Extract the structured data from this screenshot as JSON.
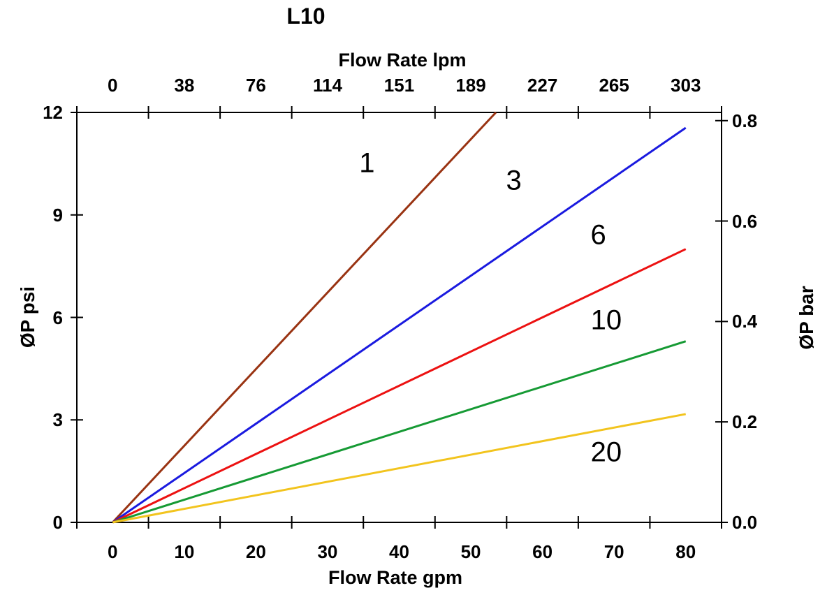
{
  "chart_data": {
    "type": "line",
    "title": "L10",
    "top_axis": {
      "label": "Flow Rate lpm",
      "tick_labels": [
        "0",
        "38",
        "76",
        "114",
        "151",
        "189",
        "227",
        "265",
        "303"
      ]
    },
    "bottom_axis": {
      "label": "Flow Rate gpm",
      "tick_labels": [
        "0",
        "10",
        "20",
        "30",
        "40",
        "50",
        "60",
        "70",
        "80"
      ],
      "range_gpm": [
        0,
        80
      ]
    },
    "left_axis": {
      "label": "ØP psi",
      "tick_labels": [
        "0",
        "3",
        "6",
        "9",
        "12"
      ],
      "tick_values": [
        0,
        3,
        6,
        9,
        12
      ],
      "range_psi": [
        0,
        12
      ]
    },
    "right_axis": {
      "label": "ØP bar",
      "tick_labels": [
        "0.0",
        "0.2",
        "0.4",
        "0.6",
        "0.8"
      ],
      "tick_values": [
        0,
        0.2,
        0.4,
        0.6,
        0.8
      ],
      "psi_per_bar": 14.7
    },
    "grid": "off",
    "legend": "none",
    "series": [
      {
        "name": "1",
        "color": "#993312",
        "points_gpm_psi": [
          [
            0,
            0
          ],
          [
            53.5,
            12.0
          ]
        ]
      },
      {
        "name": "3",
        "color": "#1A1ADF",
        "points_gpm_psi": [
          [
            0,
            0
          ],
          [
            80,
            11.55
          ]
        ]
      },
      {
        "name": "6",
        "color": "#EC1111",
        "points_gpm_psi": [
          [
            0,
            0
          ],
          [
            80,
            8.0
          ]
        ]
      },
      {
        "name": "10",
        "color": "#169A34",
        "points_gpm_psi": [
          [
            0,
            0
          ],
          [
            80,
            5.3
          ]
        ]
      },
      {
        "name": "20",
        "color": "#F2C41E",
        "points_gpm_psi": [
          [
            0,
            0
          ],
          [
            80,
            3.17
          ]
        ]
      }
    ],
    "annotations": [
      {
        "text": "1",
        "gpm": 35.5,
        "psi": 10.5
      },
      {
        "text": "3",
        "gpm": 56.0,
        "psi": 10.0
      },
      {
        "text": "6",
        "gpm": 67.8,
        "psi": 8.4
      },
      {
        "text": "10",
        "gpm": 68.9,
        "psi": 5.9
      },
      {
        "text": "20",
        "gpm": 68.9,
        "psi": 2.05
      }
    ]
  }
}
